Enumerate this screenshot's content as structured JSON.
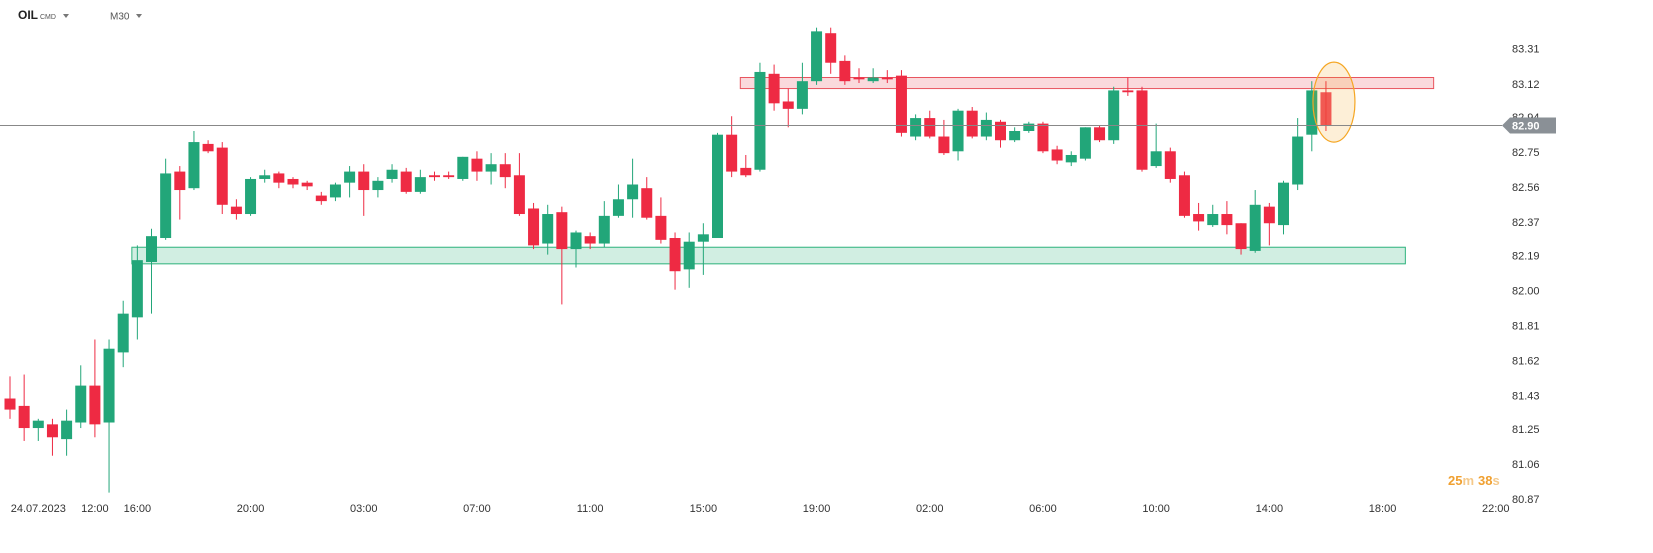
{
  "header": {
    "symbol": "OIL",
    "market": "CMD",
    "timeframe": "M30"
  },
  "countdown": {
    "minutes": 25,
    "minutes_unit": "m",
    "seconds": 38,
    "seconds_unit": "s"
  },
  "chart_data": {
    "type": "candlestick",
    "categories": [
      null,
      null,
      "24.07.2023",
      null,
      null,
      null,
      "12:00",
      null,
      null,
      "16:00",
      null,
      null,
      null,
      null,
      null,
      null,
      null,
      "20:00",
      null,
      null,
      null,
      null,
      null,
      null,
      null,
      "03:00",
      null,
      null,
      null,
      null,
      null,
      null,
      null,
      "07:00",
      null,
      null,
      null,
      null,
      null,
      null,
      null,
      "11:00",
      null,
      null,
      null,
      null,
      null,
      null,
      null,
      "15:00",
      null,
      null,
      null,
      null,
      null,
      null,
      null,
      "19:00",
      null,
      null,
      null,
      null,
      null,
      null,
      null,
      "02:00",
      null,
      null,
      null,
      null,
      null,
      null,
      null,
      "06:00",
      null,
      null,
      null,
      null,
      null,
      null,
      null,
      "10:00",
      null,
      null,
      null,
      null,
      null,
      null,
      null,
      "14:00",
      null,
      null,
      null,
      null,
      null,
      null,
      null,
      "18:00",
      null,
      null,
      null,
      null,
      null,
      null,
      null,
      "22:00"
    ],
    "open": [
      81.42,
      81.38,
      81.26,
      81.28,
      81.2,
      81.29,
      81.49,
      81.29,
      81.67,
      81.86,
      82.16,
      82.29,
      82.65,
      82.56,
      82.8,
      82.78,
      82.46,
      82.42,
      82.61,
      82.64,
      82.61,
      82.59,
      82.52,
      82.51,
      82.59,
      82.65,
      82.55,
      82.61,
      82.65,
      82.54,
      82.63,
      82.63,
      82.61,
      82.72,
      82.65,
      82.69,
      82.63,
      82.45,
      82.26,
      82.43,
      82.23,
      82.3,
      82.26,
      82.41,
      82.5,
      82.56,
      82.41,
      82.29,
      82.12,
      82.27,
      82.29,
      82.85,
      82.67,
      82.66,
      83.18,
      83.03,
      82.99,
      83.14,
      83.4,
      83.25,
      83.16,
      83.14,
      83.16,
      83.17,
      82.84,
      82.94,
      82.84,
      82.76,
      82.98,
      82.84,
      82.92,
      82.82,
      82.87,
      82.91,
      82.77,
      82.7,
      82.72,
      82.89,
      82.82,
      83.09,
      83.09,
      82.68,
      82.76,
      82.63,
      82.42,
      82.36,
      82.42,
      82.37,
      82.22,
      82.46,
      82.36,
      82.58,
      82.85,
      83.08,
      null,
      null,
      null,
      null,
      null,
      null,
      null,
      null,
      null,
      null,
      null,
      null
    ],
    "high": [
      81.54,
      81.55,
      81.31,
      81.31,
      81.36,
      81.6,
      81.74,
      81.74,
      81.95,
      82.25,
      82.34,
      82.72,
      82.68,
      82.87,
      82.82,
      82.81,
      82.5,
      82.62,
      82.66,
      82.65,
      82.62,
      82.6,
      82.54,
      82.59,
      82.68,
      82.69,
      82.62,
      82.69,
      82.67,
      82.66,
      82.65,
      82.65,
      82.73,
      82.76,
      82.75,
      82.75,
      82.75,
      82.48,
      82.47,
      82.46,
      82.33,
      82.32,
      82.49,
      82.58,
      82.72,
      82.62,
      82.51,
      82.32,
      82.32,
      82.37,
      82.86,
      82.95,
      82.74,
      83.24,
      83.23,
      83.1,
      83.24,
      83.43,
      83.43,
      83.28,
      83.21,
      83.21,
      83.2,
      83.2,
      82.96,
      82.98,
      82.93,
      82.99,
      83.0,
      82.97,
      82.93,
      82.89,
      82.92,
      82.92,
      82.79,
      82.76,
      82.89,
      82.9,
      83.11,
      83.16,
      83.11,
      82.91,
      82.78,
      82.65,
      82.48,
      82.47,
      82.49,
      82.37,
      82.55,
      82.48,
      82.6,
      82.94,
      83.14,
      83.14,
      null,
      null,
      null,
      null,
      null,
      null,
      null,
      null,
      null,
      null,
      null,
      null
    ],
    "low": [
      81.31,
      81.19,
      81.19,
      81.11,
      81.11,
      81.26,
      81.21,
      80.91,
      81.59,
      81.74,
      81.88,
      82.28,
      82.39,
      82.55,
      82.75,
      82.42,
      82.39,
      82.41,
      82.59,
      82.56,
      82.56,
      82.55,
      82.47,
      82.49,
      82.51,
      82.41,
      82.51,
      82.59,
      82.53,
      82.53,
      82.6,
      82.61,
      82.6,
      82.6,
      82.58,
      82.56,
      82.41,
      82.23,
      82.2,
      81.93,
      82.13,
      82.23,
      82.24,
      82.4,
      82.4,
      82.39,
      82.26,
      82.01,
      82.02,
      82.09,
      82.29,
      82.62,
      82.62,
      82.65,
      82.98,
      82.89,
      82.96,
      83.12,
      83.18,
      83.12,
      83.13,
      83.13,
      83.13,
      82.84,
      82.82,
      82.83,
      82.74,
      82.71,
      82.83,
      82.82,
      82.78,
      82.81,
      82.86,
      82.75,
      82.69,
      82.68,
      82.71,
      82.81,
      82.8,
      83.06,
      82.65,
      82.67,
      82.59,
      82.4,
      82.33,
      82.35,
      82.31,
      82.2,
      82.21,
      82.25,
      82.31,
      82.55,
      82.76,
      82.87,
      null,
      null,
      null,
      null,
      null,
      null,
      null,
      null,
      null,
      null,
      null,
      null
    ],
    "close": [
      81.36,
      81.26,
      81.3,
      81.21,
      81.3,
      81.49,
      81.28,
      81.69,
      81.88,
      82.17,
      82.3,
      82.64,
      82.55,
      82.81,
      82.76,
      82.47,
      82.42,
      82.61,
      82.63,
      82.59,
      82.58,
      82.57,
      82.49,
      82.58,
      82.65,
      82.55,
      82.6,
      82.66,
      82.54,
      82.62,
      82.62,
      82.62,
      82.73,
      82.65,
      82.69,
      82.62,
      82.42,
      82.25,
      82.42,
      82.23,
      82.32,
      82.26,
      82.41,
      82.5,
      82.58,
      82.4,
      82.28,
      82.11,
      82.27,
      82.31,
      82.85,
      82.65,
      82.63,
      83.19,
      83.02,
      82.99,
      83.14,
      83.41,
      83.24,
      83.14,
      83.15,
      83.16,
      83.15,
      82.86,
      82.94,
      82.84,
      82.75,
      82.98,
      82.84,
      82.93,
      82.82,
      82.87,
      82.91,
      82.76,
      82.71,
      82.74,
      82.89,
      82.82,
      83.09,
      83.08,
      82.66,
      82.76,
      82.61,
      82.41,
      82.38,
      82.42,
      82.36,
      82.23,
      82.47,
      82.37,
      82.59,
      82.84,
      83.09,
      82.9,
      null,
      null,
      null,
      null,
      null,
      null,
      null,
      null,
      null,
      null,
      null,
      null
    ],
    "up_color": "#22a679",
    "down_color": "#ee2a43",
    "zones": [
      {
        "from": 52,
        "to": 101,
        "top": 83.16,
        "bottom": 83.1,
        "color": "#e8545e"
      },
      {
        "from": 9,
        "to": 99,
        "top": 82.24,
        "bottom": 82.15,
        "color": "#2db37c"
      }
    ],
    "current_price": {
      "value": 82.9,
      "label": "82.90"
    },
    "ylim": [
      80.87,
      83.58
    ],
    "yticks": [
      83.31,
      83.12,
      82.94,
      82.75,
      82.56,
      82.37,
      82.19,
      {
        "value": 82,
        "label": "82.00"
      },
      81.81,
      81.62,
      81.43,
      81.25,
      81.06,
      80.87
    ]
  }
}
